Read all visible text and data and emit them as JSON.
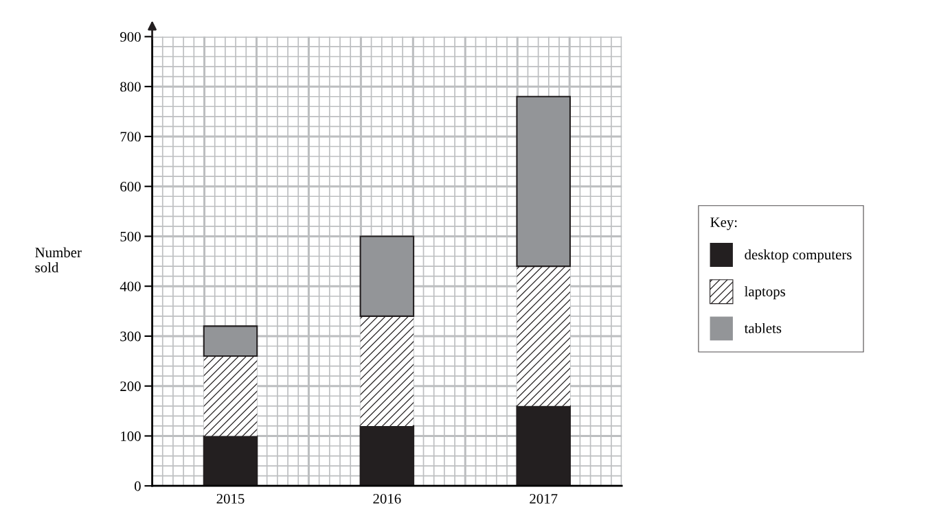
{
  "chart_data": {
    "type": "bar",
    "stacked": true,
    "ylabel": "Number\nsold",
    "legend_title": "Key:",
    "legend": "right",
    "categories": [
      "2015",
      "2016",
      "2017"
    ],
    "series": [
      {
        "name": "desktop computers",
        "color": "#231f20",
        "values": [
          100,
          120,
          160
        ]
      },
      {
        "name": "laptops",
        "color": "#ffffff",
        "values": [
          160,
          220,
          280
        ]
      },
      {
        "name": "tablets",
        "color": "#939598",
        "values": [
          60,
          160,
          340
        ]
      }
    ],
    "ylim": [
      0,
      900
    ],
    "yticks": [
      0,
      100,
      200,
      300,
      400,
      500,
      600,
      700,
      800,
      900
    ],
    "grid": true
  }
}
